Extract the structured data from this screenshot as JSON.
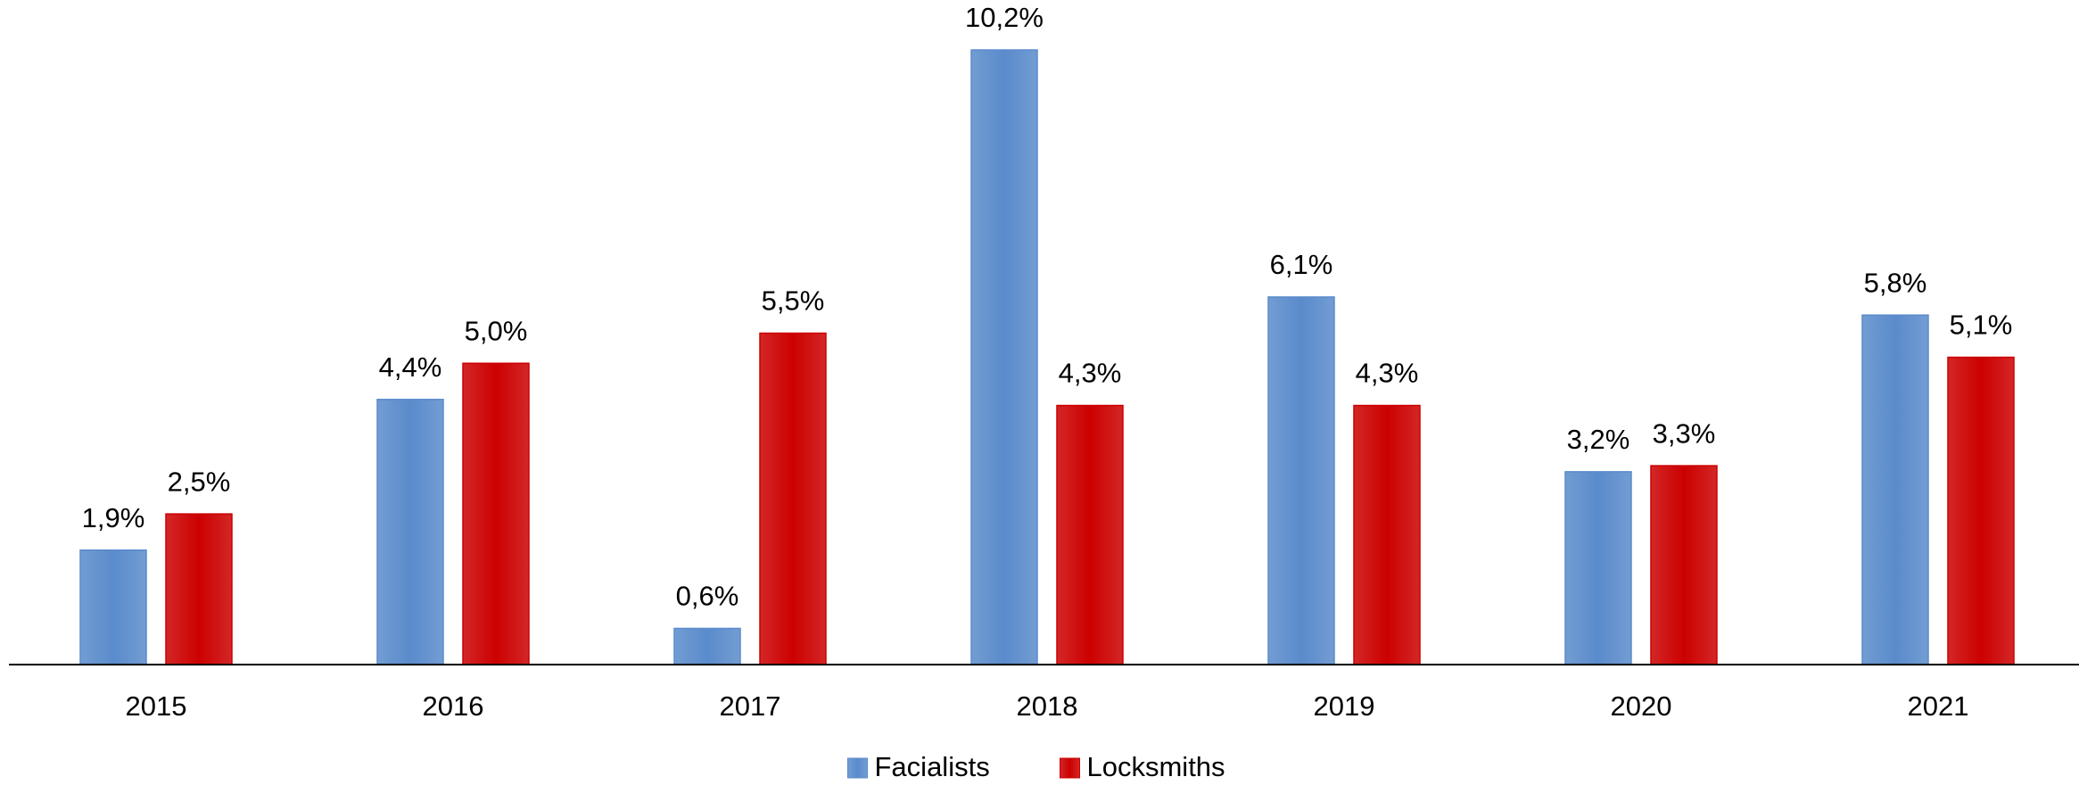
{
  "chart_data": {
    "type": "bar",
    "categories": [
      "2015",
      "2016",
      "2017",
      "2018",
      "2019",
      "2020",
      "2021"
    ],
    "series": [
      {
        "name": "Facialists",
        "color": "#5a8bcb",
        "values": [
          1.9,
          4.4,
          0.6,
          10.2,
          6.1,
          3.2,
          5.8
        ],
        "value_labels": [
          "1,9%",
          "4,4%",
          "0,6%",
          "10,2%",
          "6,1%",
          "3,2%",
          "5,8%"
        ]
      },
      {
        "name": "Locksmiths",
        "color": "#cc0000",
        "values": [
          2.5,
          5.0,
          5.5,
          4.3,
          4.3,
          3.3,
          5.1
        ],
        "value_labels": [
          "2,5%",
          "5,0%",
          "5,5%",
          "4,3%",
          "4,3%",
          "3,3%",
          "5,1%"
        ]
      }
    ],
    "legend": "bottom"
  }
}
